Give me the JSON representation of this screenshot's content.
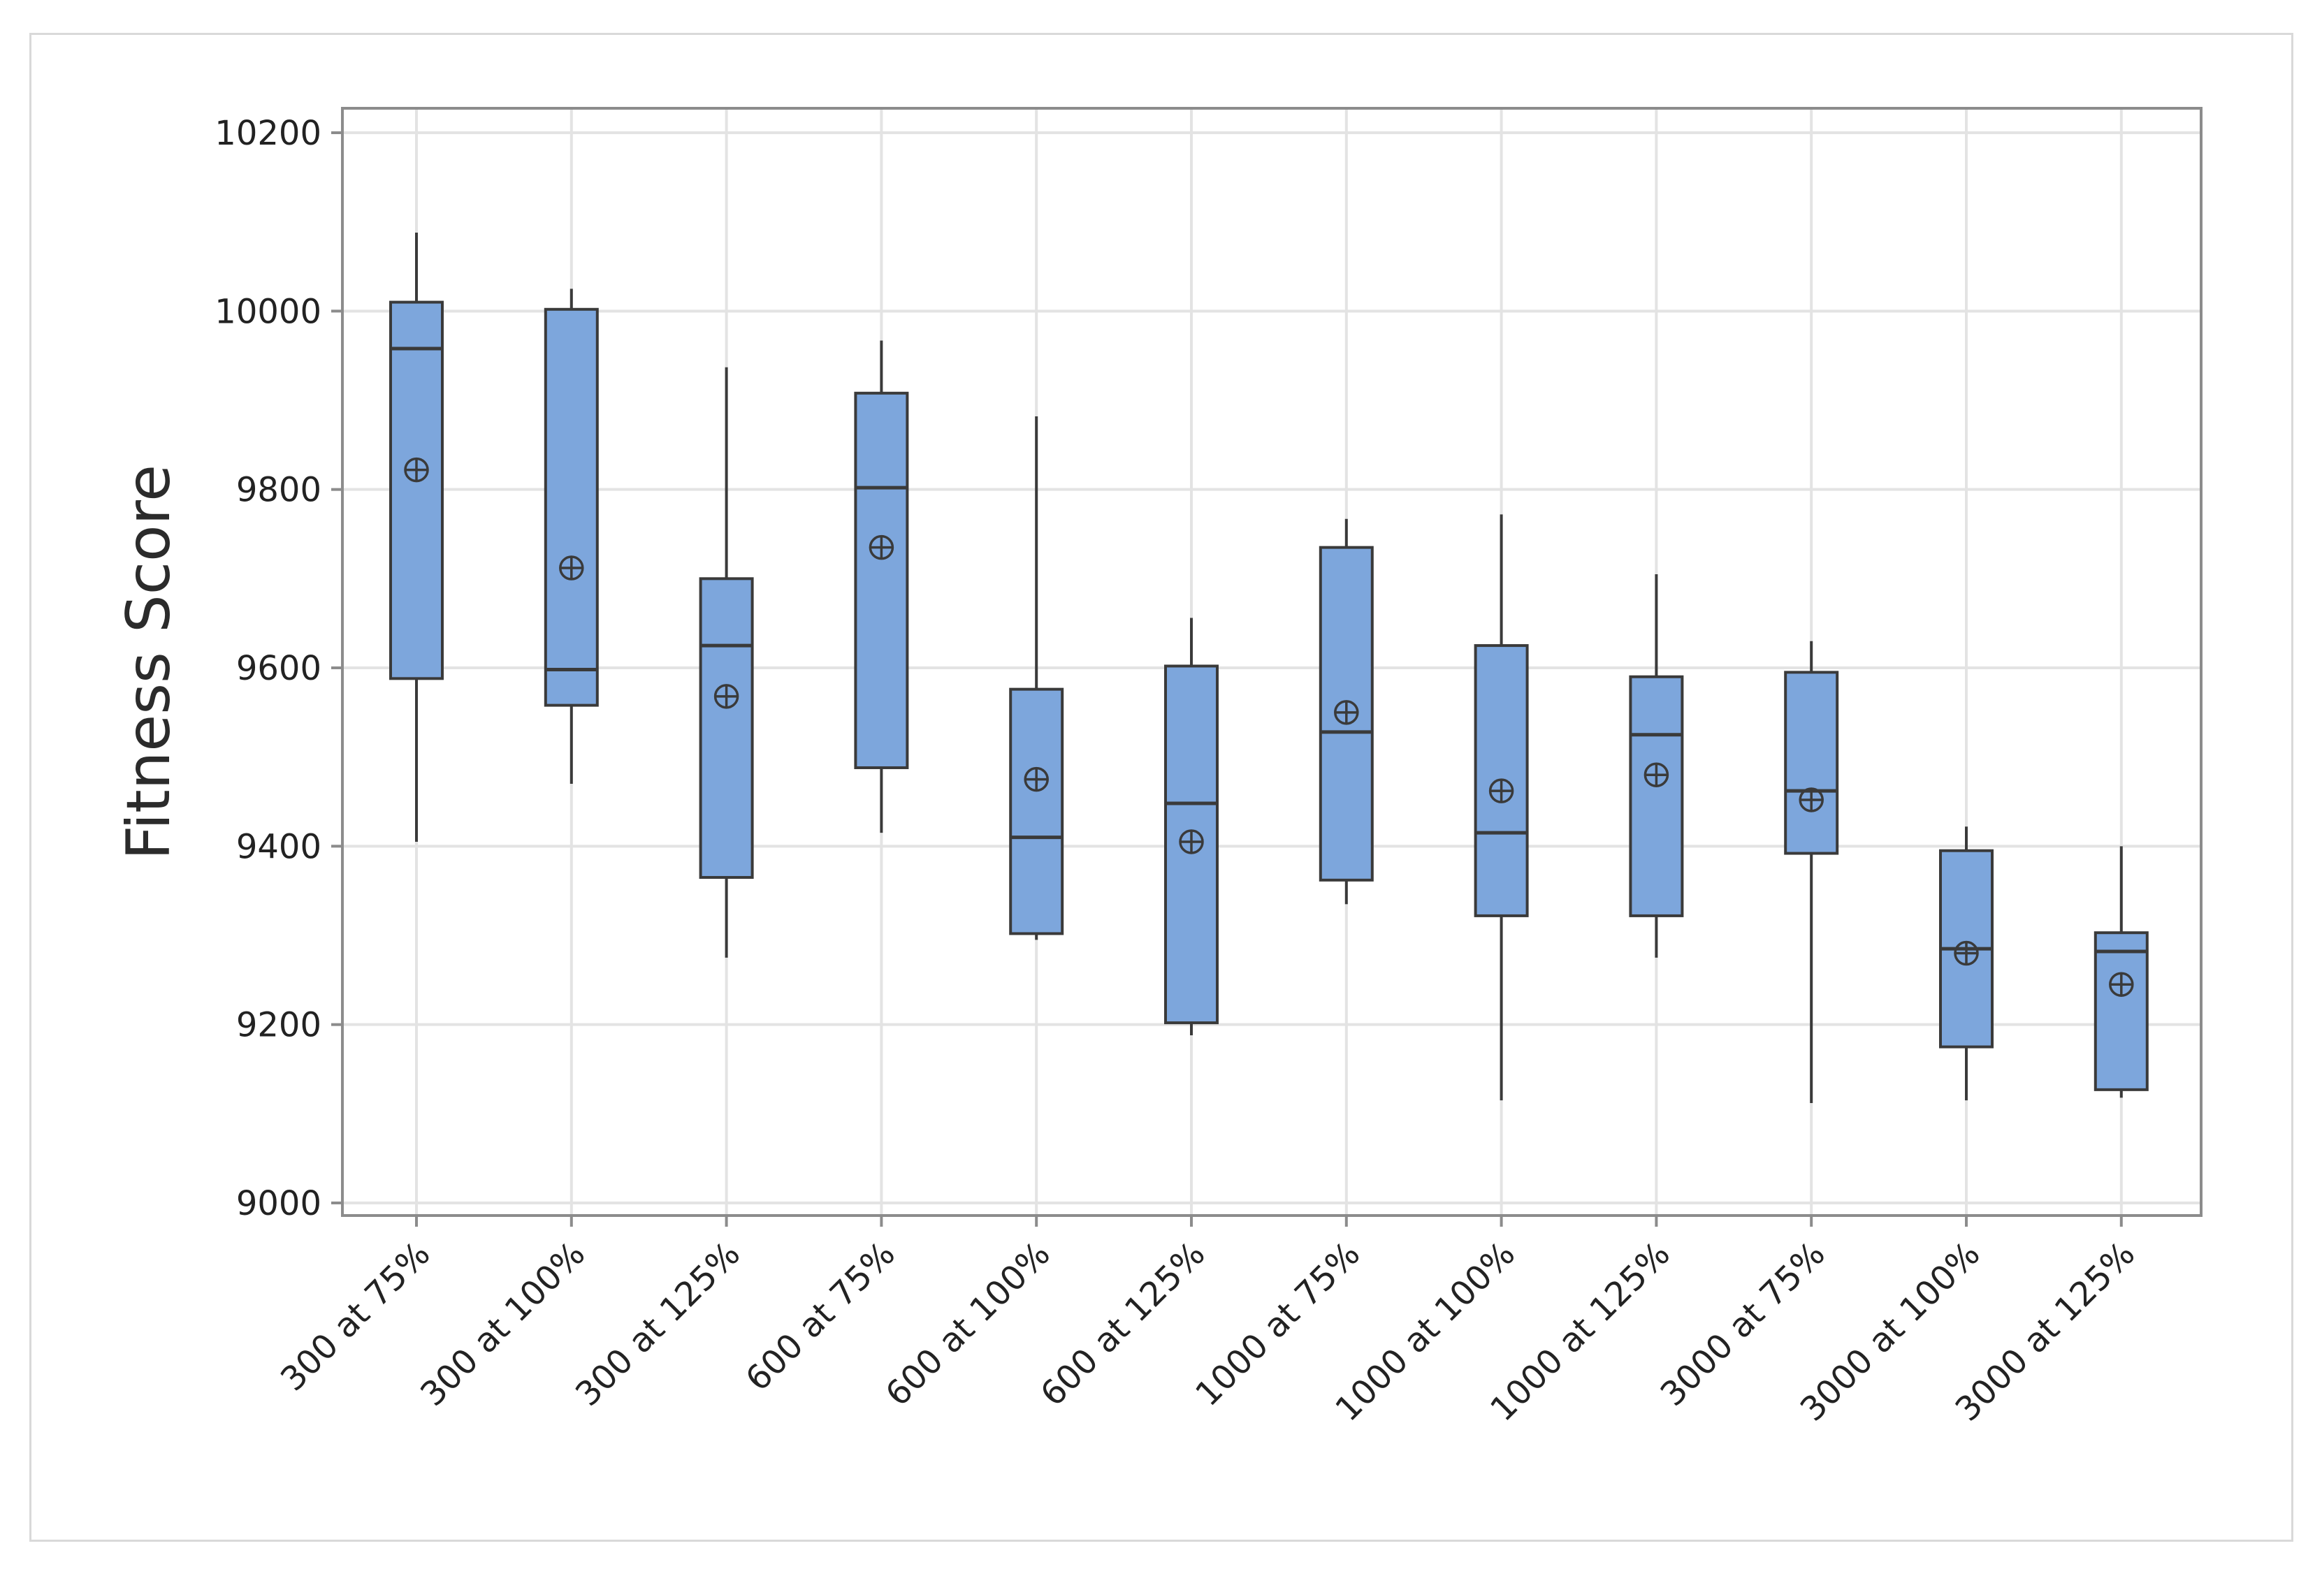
{
  "chart_data": {
    "type": "box",
    "title": "",
    "xlabel": "",
    "ylabel": "Fitness Score",
    "ylim": [
      9000,
      10200
    ],
    "yticks": [
      9000,
      9200,
      9400,
      9600,
      9800,
      10000,
      10200
    ],
    "grid": true,
    "legend": "none",
    "colors": {
      "box_fill": "#7da6dc",
      "box_stroke": "#3a3a3a",
      "grid": "#e3e3e3",
      "frame": "#8c8c8c"
    },
    "categories": [
      "300 at 75%",
      "300 at 100%",
      "300 at 125%",
      "600 at 75%",
      "600 at 100%",
      "600 at 125%",
      "1000 at 75%",
      "1000 at 100%",
      "1000 at 125%",
      "3000 at 75%",
      "3000 at 100%",
      "3000 at 125%"
    ],
    "boxes": [
      {
        "category": "300 at 75%",
        "min": 9405,
        "q1": 9588,
        "median": 9958,
        "q3": 10010,
        "max": 10088,
        "mean": 9822
      },
      {
        "category": "300 at 100%",
        "min": 9470,
        "q1": 9558,
        "median": 9598,
        "q3": 10002,
        "max": 10025,
        "mean": 9712
      },
      {
        "category": "300 at 125%",
        "min": 9275,
        "q1": 9365,
        "median": 9625,
        "q3": 9700,
        "max": 9937,
        "mean": 9568
      },
      {
        "category": "600 at 75%",
        "min": 9415,
        "q1": 9488,
        "median": 9802,
        "q3": 9908,
        "max": 9967,
        "mean": 9735
      },
      {
        "category": "600 at 100%",
        "min": 9295,
        "q1": 9302,
        "median": 9410,
        "q3": 9576,
        "max": 9882,
        "mean": 9475
      },
      {
        "category": "600 at 125%",
        "min": 9188,
        "q1": 9202,
        "median": 9448,
        "q3": 9602,
        "max": 9656,
        "mean": 9405
      },
      {
        "category": "1000 at 75%",
        "min": 9335,
        "q1": 9362,
        "median": 9528,
        "q3": 9735,
        "max": 9767,
        "mean": 9550
      },
      {
        "category": "1000 at 100%",
        "min": 9115,
        "q1": 9322,
        "median": 9415,
        "q3": 9625,
        "max": 9772,
        "mean": 9462
      },
      {
        "category": "1000 at 125%",
        "min": 9275,
        "q1": 9322,
        "median": 9525,
        "q3": 9590,
        "max": 9705,
        "mean": 9480
      },
      {
        "category": "3000 at 75%",
        "min": 9112,
        "q1": 9392,
        "median": 9462,
        "q3": 9595,
        "max": 9630,
        "mean": 9452
      },
      {
        "category": "3000 at 100%",
        "min": 9115,
        "q1": 9175,
        "median": 9285,
        "q3": 9395,
        "max": 9422,
        "mean": 9280
      },
      {
        "category": "3000 at 125%",
        "min": 9118,
        "q1": 9127,
        "median": 9282,
        "q3": 9303,
        "max": 9400,
        "mean": 9245
      }
    ]
  }
}
